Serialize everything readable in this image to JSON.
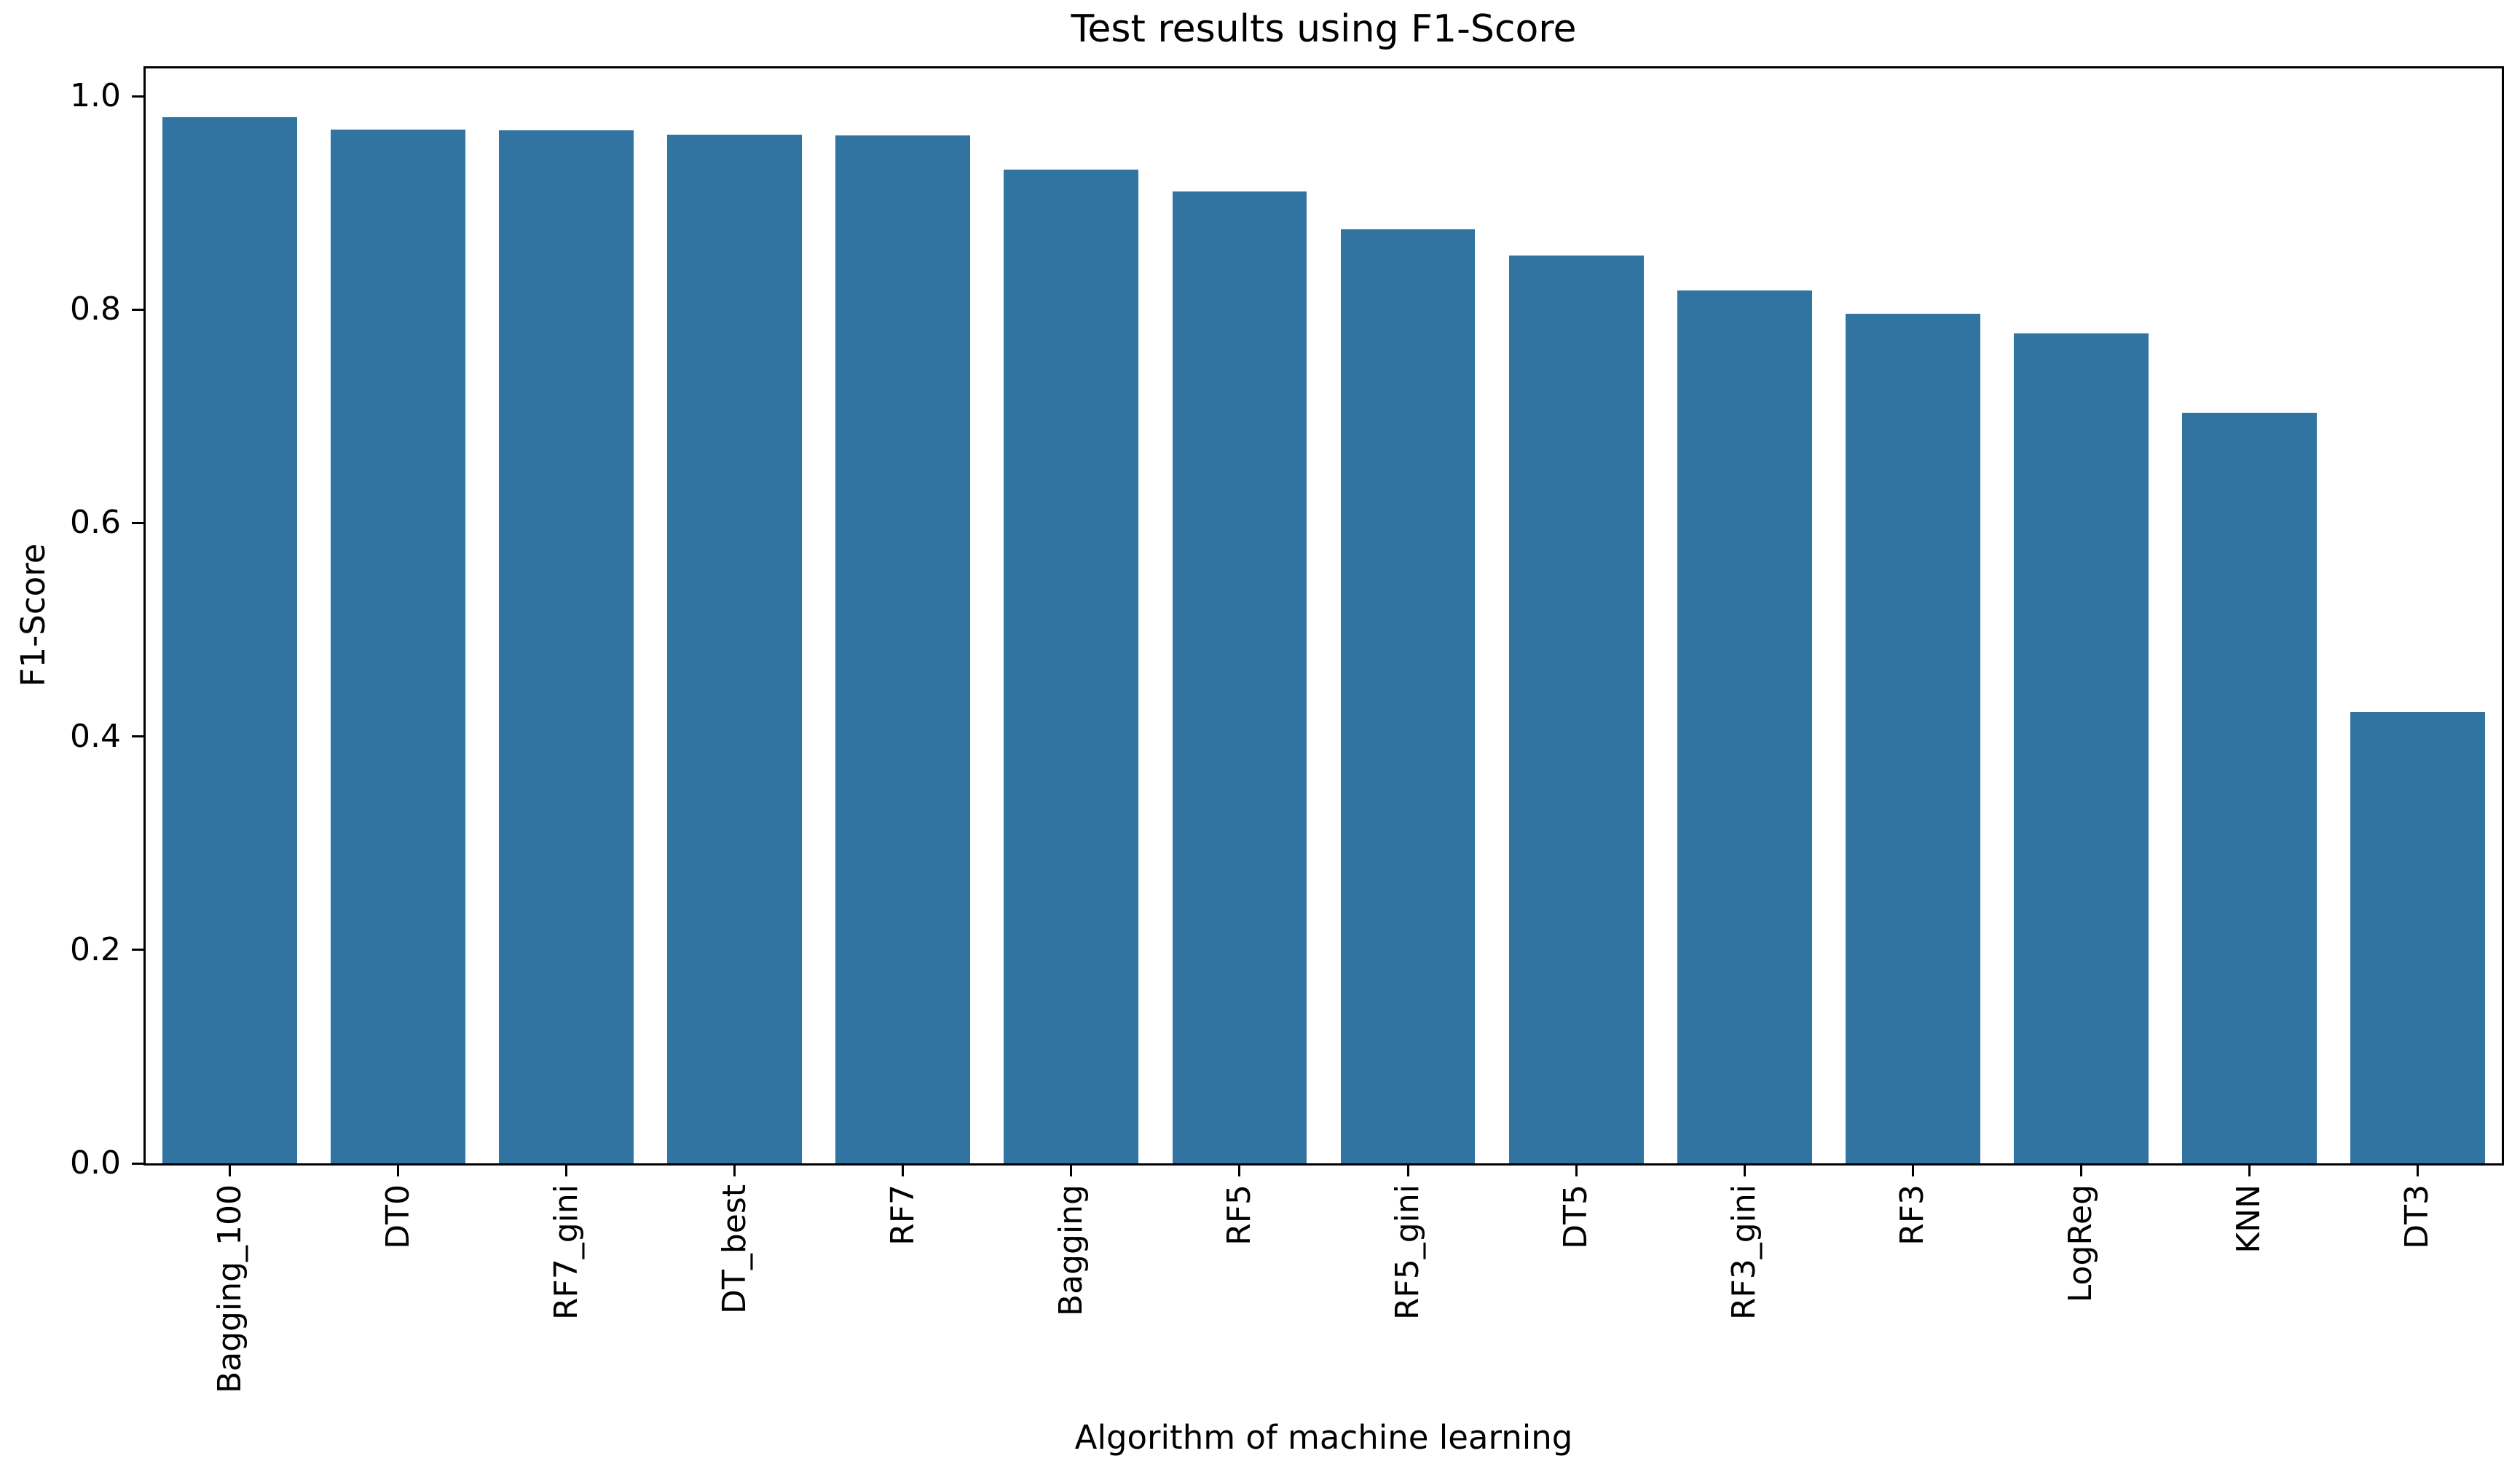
{
  "chart_data": {
    "type": "bar",
    "title": "Test results using F1-Score",
    "xlabel": "Algorithm of machine learning",
    "ylabel": "F1-Score",
    "categories": [
      "Bagging_100",
      "DT0",
      "RF7_gini",
      "DT_best",
      "RF7",
      "Bagging",
      "RF5",
      "RF5_gini",
      "DT5",
      "RF3_gini",
      "RF3",
      "LogReg",
      "KNN",
      "DT3"
    ],
    "values": [
      0.98,
      0.969,
      0.968,
      0.964,
      0.963,
      0.931,
      0.911,
      0.875,
      0.851,
      0.818,
      0.796,
      0.778,
      0.703,
      0.423
    ],
    "yticks": [
      0.0,
      0.2,
      0.4,
      0.6,
      0.8,
      1.0
    ],
    "ytick_labels": [
      "0.0",
      "0.2",
      "0.4",
      "0.6",
      "0.8",
      "1.0"
    ],
    "ylim": [
      0,
      1.026
    ],
    "xtick_rotation": 90,
    "grid": false,
    "legend": null,
    "bar_color": "#3274a1",
    "axis_color": "#000000",
    "background_color": "#ffffff"
  }
}
